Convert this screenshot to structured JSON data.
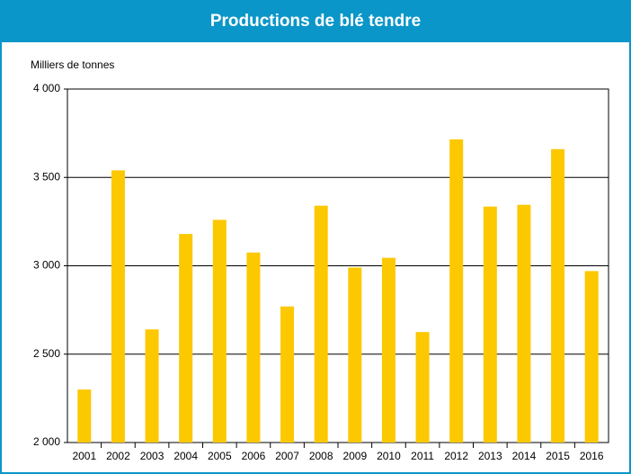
{
  "chart_data": {
    "type": "bar",
    "title": "Productions de blé tendre",
    "ylabel": "Milliers de tonnes",
    "categories": [
      "2001",
      "2002",
      "2003",
      "2004",
      "2005",
      "2006",
      "2007",
      "2008",
      "2009",
      "2010",
      "2011",
      "2012",
      "2013",
      "2014",
      "2015",
      "2016"
    ],
    "values": [
      2300,
      3540,
      2640,
      3180,
      3260,
      3075,
      2770,
      3340,
      2990,
      3045,
      2625,
      3715,
      3335,
      3345,
      3660,
      2970
    ],
    "color": "#fcc800",
    "ylim": [
      2000,
      4000
    ],
    "yticks": [
      {
        "value": 2000,
        "label": "2 000"
      },
      {
        "value": 2500,
        "label": "2 500"
      },
      {
        "value": 3000,
        "label": "3 000"
      },
      {
        "value": 3500,
        "label": "3 500"
      },
      {
        "value": 4000,
        "label": "4 000"
      }
    ],
    "grid": true
  }
}
